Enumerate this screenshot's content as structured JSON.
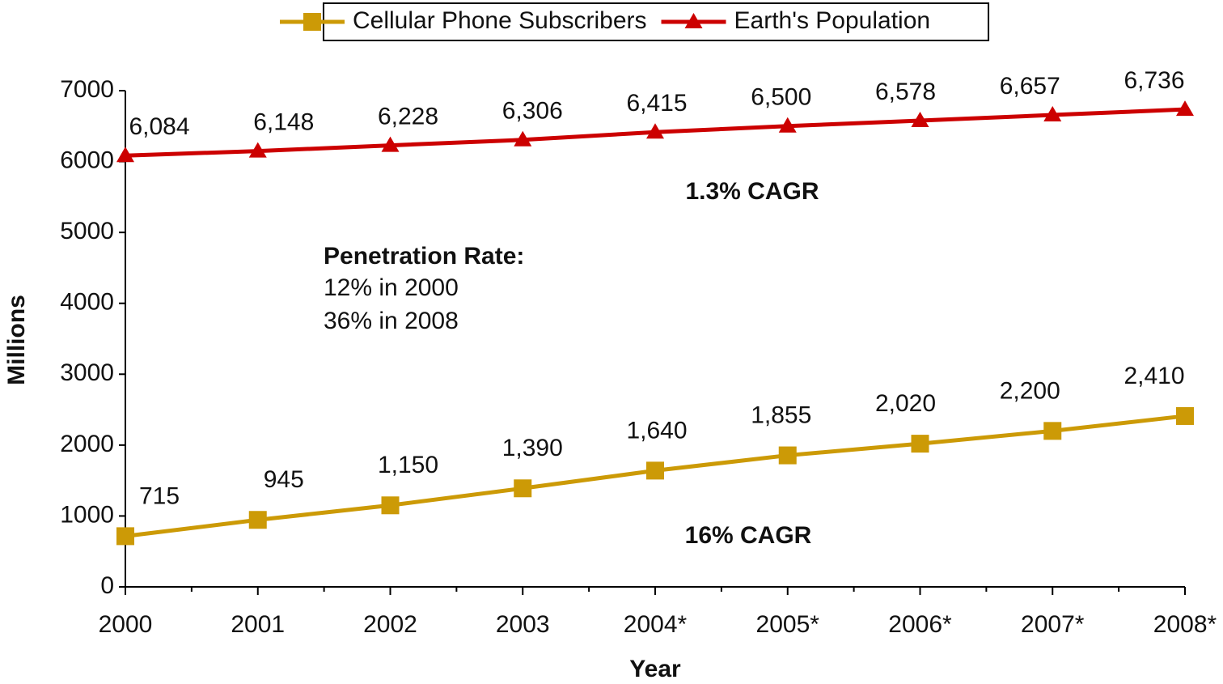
{
  "chart_data": {
    "type": "line",
    "y_label": "Millions",
    "x_label": "Year",
    "categories": [
      "2000",
      "2001",
      "2002",
      "2003",
      "2004*",
      "2005*",
      "2006*",
      "2007*",
      "2008*"
    ],
    "series": [
      {
        "name": "Cellular Phone Subscribers",
        "color": "#cc9a06",
        "marker": "square",
        "values": [
          715,
          945,
          1150,
          1390,
          1640,
          1855,
          2020,
          2200,
          2410
        ],
        "value_labels": [
          "715",
          "945",
          "1,150",
          "1,390",
          "1,640",
          "1,855",
          "2,020",
          "2,200",
          "2,410"
        ]
      },
      {
        "name": "Earth's Population",
        "color": "#cc0000",
        "marker": "triangle",
        "values": [
          6084,
          6148,
          6228,
          6306,
          6415,
          6500,
          6578,
          6657,
          6736
        ],
        "value_labels": [
          "6,084",
          "6,148",
          "6,228",
          "6,306",
          "6,415",
          "6,500",
          "6,578",
          "6,657",
          "6,736"
        ]
      }
    ],
    "ylim": [
      0,
      7000
    ],
    "yticks": [
      0,
      1000,
      2000,
      3000,
      4000,
      5000,
      6000,
      7000
    ],
    "legend": "top",
    "annotations": [
      "1.3% CAGR",
      "16% CAGR",
      "Penetration Rate:",
      "12% in 2000",
      "36% in 2008"
    ]
  }
}
